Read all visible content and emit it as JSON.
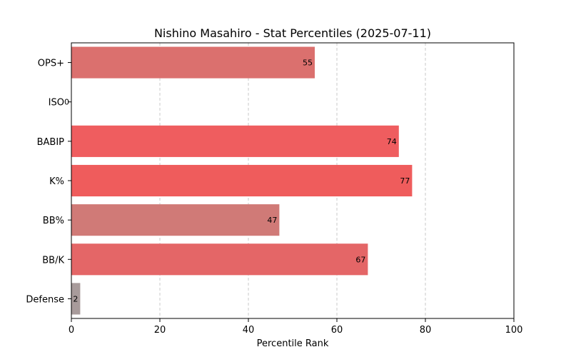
{
  "chart_data": {
    "type": "bar",
    "orientation": "horizontal",
    "title": "Nishino Masahiro - Stat Percentiles (2025-07-11)",
    "xlabel": "Percentile Rank",
    "ylabel": "",
    "xlim": [
      0,
      100
    ],
    "xticks": [
      0,
      20,
      40,
      60,
      80,
      100
    ],
    "grid": "x-dashed",
    "categories": [
      "OPS+",
      "ISO",
      "BABIP",
      "K%",
      "BB%",
      "BB/K",
      "Defense"
    ],
    "values": [
      55,
      0,
      74,
      77,
      47,
      67,
      2
    ],
    "colors": [
      "#db706e",
      "#a89b9b",
      "#ef5d5f",
      "#ef5c5c",
      "#d07a77",
      "#e46667",
      "#a89b9b"
    ]
  }
}
